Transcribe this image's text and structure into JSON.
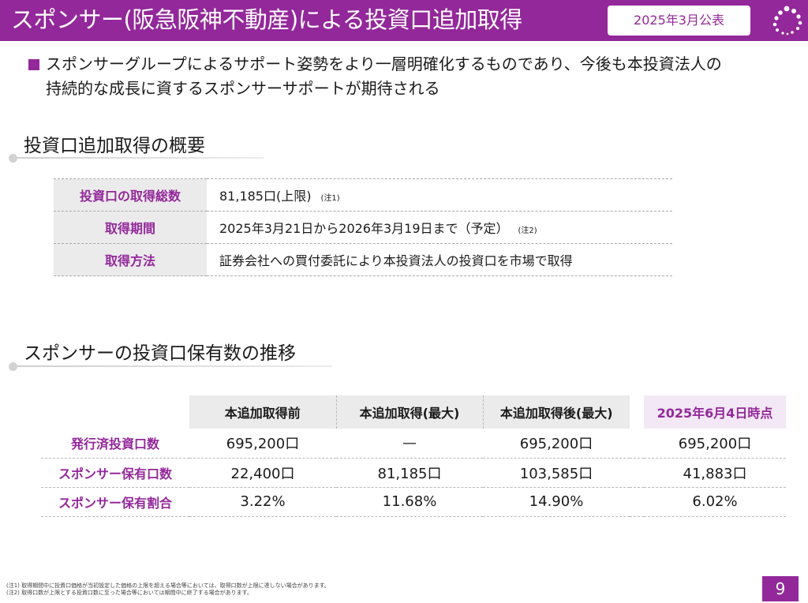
{
  "header": {
    "title": "スポンサー(阪急阪神不動産)による投資口追加取得",
    "date_badge": "2025年3月公表",
    "logo_icon": "dot-ring-logo-icon"
  },
  "lead": {
    "line1": "スポンサーグループによるサポート姿勢をより一層明確化するものであり、今後も本投資法人の",
    "line2": "持続的な成長に資するスポンサーサポートが期待される"
  },
  "overview": {
    "title": "投資口追加取得の概要",
    "rows": [
      {
        "label": "投資口の取得総数",
        "value": "81,185口(上限)",
        "note": "(注1)"
      },
      {
        "label": "取得期間",
        "value": "2025年3月21日から2026年3月19日まで（予定）",
        "note": "(注2)"
      },
      {
        "label": "取得方法",
        "value": "証券会社への買付委託により本投資法人の投資口を市場で取得",
        "note": ""
      }
    ]
  },
  "holdings": {
    "title": "スポンサーの投資口保有数の推移",
    "columns": [
      "本追加取得前",
      "本追加取得(最大)",
      "本追加取得後(最大)",
      "2025年6月4日時点"
    ],
    "rows": [
      {
        "label": "発行済投資口数",
        "values": [
          "695,200口",
          "—",
          "695,200口",
          "695,200口"
        ]
      },
      {
        "label": "スポンサー保有口数",
        "values": [
          "22,400口",
          "81,185口",
          "103,585口",
          "41,883口"
        ]
      },
      {
        "label": "スポンサー保有割合",
        "values": [
          "3.22%",
          "11.68%",
          "14.90%",
          "6.02%"
        ]
      }
    ]
  },
  "footnotes": {
    "note1": "(注1) 取得期間中に投資口価格が当初設定した価格の上限を超える場合等においては、取得口数が上限に達しない場合があります。",
    "note2": "(注2) 取得口数が上限とする投資口数に至った場合等においては期間中に終了する場合があります。"
  },
  "page_number": "9",
  "colors": {
    "accent": "#93289a",
    "header_bg": "#93289a",
    "label_bg": "#ebebeb",
    "highlight_bg": "#f3e8f5"
  }
}
